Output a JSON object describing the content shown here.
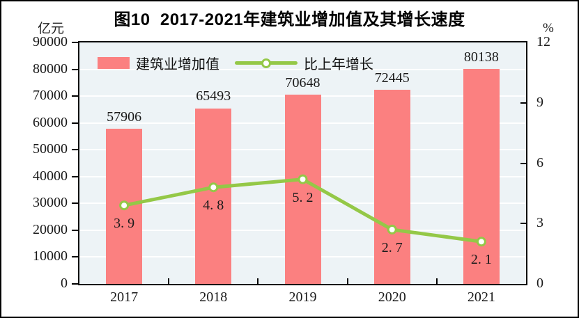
{
  "frame": {
    "title": "图10  2017-2021年建筑业增加值及其增长速度",
    "unit_left": "亿元",
    "unit_right": "%"
  },
  "chart_data": {
    "type": "bar+line",
    "title": "图10 2017-2021年建筑业增加值及其增长速度",
    "categories": [
      "2017",
      "2018",
      "2019",
      "2020",
      "2021"
    ],
    "series": [
      {
        "name": "建筑业增加值",
        "type": "bar",
        "axis": "left",
        "values": [
          57906,
          65493,
          70648,
          72445,
          80138
        ],
        "labels": [
          "57906",
          "65493",
          "70648",
          "72445",
          "80138"
        ],
        "color": "#fb8080"
      },
      {
        "name": "比上年增长",
        "type": "line",
        "axis": "right",
        "values": [
          3.9,
          4.8,
          5.2,
          2.7,
          2.1
        ],
        "labels": [
          "3. 9",
          "4. 8",
          "5. 2",
          "2. 7",
          "2. 1"
        ],
        "color": "#94c847",
        "marker": {
          "fill": "#ffffff",
          "stroke": "#94c847"
        }
      }
    ],
    "left_axis": {
      "unit": "亿元",
      "min": 0,
      "max": 90000,
      "step": 10000,
      "ticks": [
        "0",
        "10000",
        "20000",
        "30000",
        "40000",
        "50000",
        "60000",
        "70000",
        "80000",
        "90000"
      ]
    },
    "right_axis": {
      "unit": "%",
      "min": 0,
      "max": 12,
      "step": 3,
      "ticks": [
        "0",
        "3",
        "6",
        "9",
        "12"
      ]
    },
    "legend_position": "top-left-inside",
    "grid": "horizontal-white",
    "plot_bg": "#edf3f6",
    "gridline_color": "#ffffff",
    "frame_color": "#000000",
    "text_color": "#1a1a1a"
  }
}
